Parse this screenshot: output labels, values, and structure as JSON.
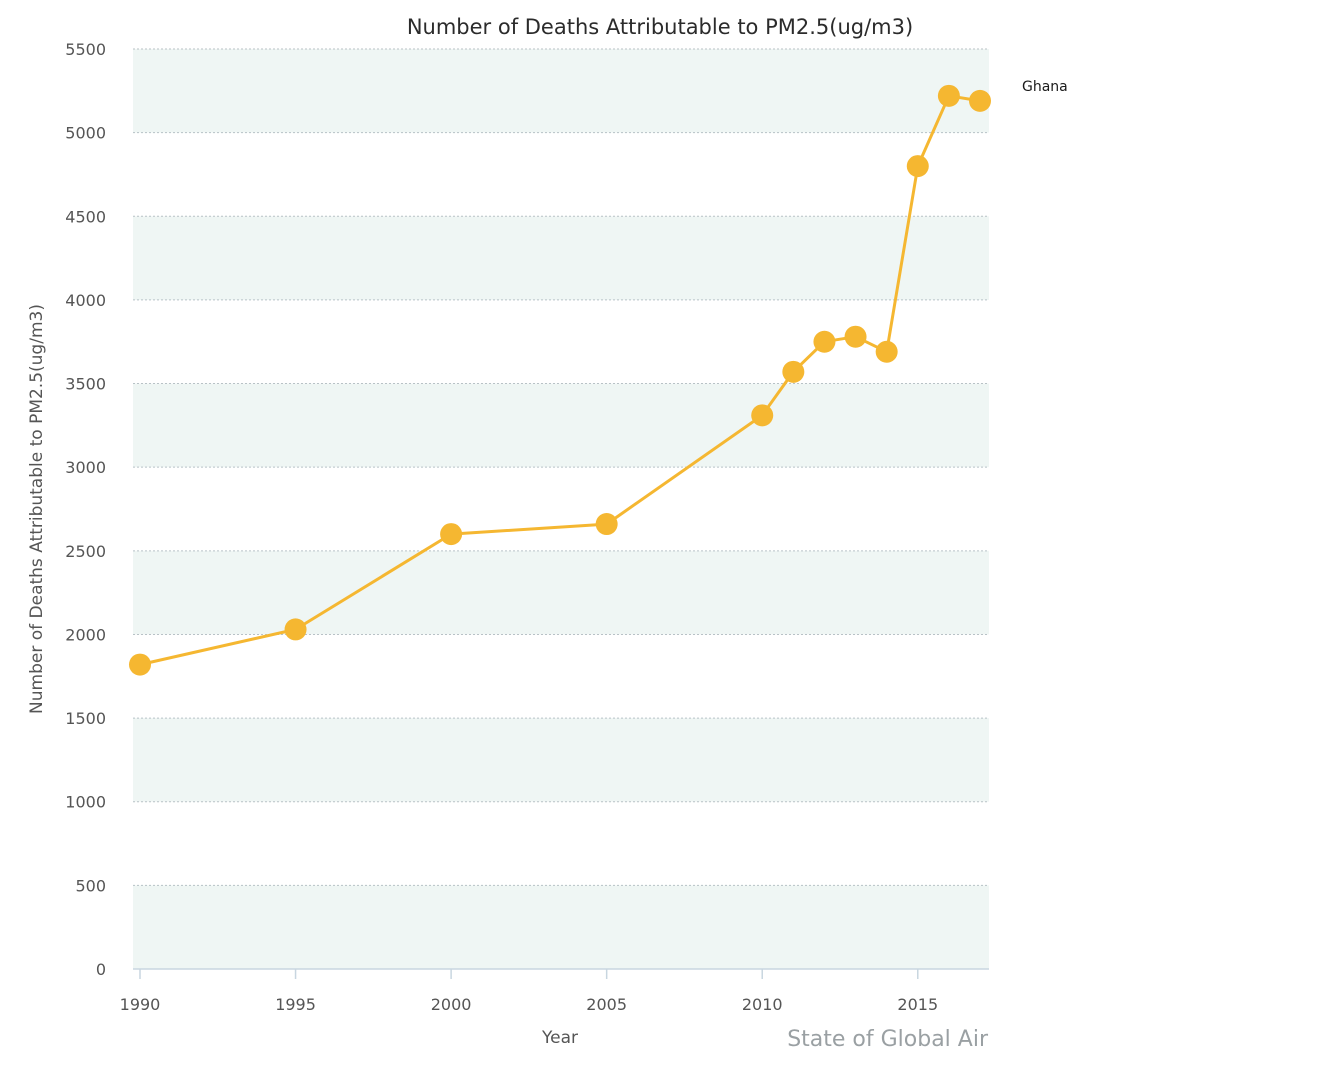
{
  "colors": {
    "series": "#f5b731",
    "band": "#eff6f4",
    "grid": "#b8c2c6",
    "axis": "#c8d6e0"
  },
  "chart_data": {
    "type": "line",
    "title": "Number of Deaths Attributable to PM2.5(ug/m3)",
    "xlabel": "Year",
    "ylabel": "Number of Deaths Attributable to PM2.5(ug/m3)",
    "xlim": [
      1990,
      2017
    ],
    "ylim": [
      0,
      5500
    ],
    "x_ticks": [
      1990,
      1995,
      2000,
      2005,
      2010,
      2015
    ],
    "y_ticks": [
      0,
      500,
      1000,
      1500,
      2000,
      2500,
      3000,
      3500,
      4000,
      4500,
      5000,
      5500
    ],
    "grid": true,
    "legend_position": "right",
    "series": [
      {
        "name": "Ghana",
        "x": [
          1990,
          1995,
          2000,
          2005,
          2010,
          2011,
          2012,
          2013,
          2014,
          2015,
          2016,
          2017
        ],
        "values": [
          1820,
          2030,
          2600,
          2660,
          3310,
          3570,
          3750,
          3780,
          3690,
          4800,
          5220,
          5190
        ]
      }
    ]
  },
  "credit": "State of Global Air"
}
